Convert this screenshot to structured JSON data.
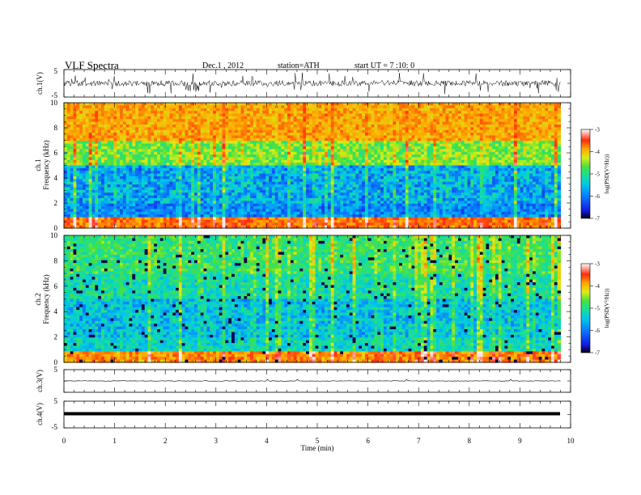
{
  "header": {
    "title": "VLF  Spectra",
    "date": "Dec.1  , 2012",
    "station": "station=ATH",
    "start": "start  UT  =   7  :10: 0"
  },
  "chart_data": [
    {
      "type": "line",
      "panel": "ch1",
      "ylabel": "ch.1(V)",
      "ylim": [
        -5,
        5
      ],
      "yticks": [
        "5",
        "-5"
      ]
    },
    {
      "type": "heatmap",
      "panel": "spec1",
      "ylabel_top": "ch.1",
      "ylabel": "Frequency  (kHz)",
      "ylim": [
        0,
        10
      ],
      "yticks": [
        "0",
        "2",
        "4",
        "6",
        "8",
        "10"
      ],
      "colorbar": {
        "label": "log(PSD(V²/Hz))",
        "range": [
          -7,
          -3
        ],
        "ticks": [
          "-3",
          "-4",
          "-5",
          "-6",
          "-7"
        ]
      }
    },
    {
      "type": "heatmap",
      "panel": "spec2",
      "ylabel_top": "ch.2",
      "ylabel": "Frequency  (kHz)",
      "ylim": [
        0,
        10
      ],
      "yticks": [
        "0",
        "2",
        "4",
        "6",
        "8",
        "10"
      ],
      "colorbar": {
        "label": "log(PSD(V²/Hz))",
        "range": [
          -7,
          -3
        ],
        "ticks": [
          "-3",
          "-4",
          "-5",
          "-6",
          "-7"
        ]
      }
    },
    {
      "type": "line",
      "panel": "ch3",
      "ylabel": "ch.3(V)",
      "ylim": [
        -5,
        5
      ],
      "yticks": [
        "5",
        "-5"
      ]
    },
    {
      "type": "line",
      "panel": "ch4",
      "ylabel": "ch.4(V)",
      "ylim": [
        -5,
        5
      ],
      "yticks": [
        "5",
        "-5"
      ]
    }
  ],
  "xaxis": {
    "label": "Time  (min)",
    "xlim": [
      0,
      10
    ],
    "ticks": [
      "0",
      "1",
      "2",
      "3",
      "4",
      "5",
      "6",
      "7",
      "8",
      "9",
      "10"
    ],
    "data_end": 9.8
  },
  "colors": {
    "axis": "#000000",
    "colormap": [
      "#000000",
      "#1414dc",
      "#0a7cff",
      "#00c8e8",
      "#1ee08c",
      "#48e040",
      "#d8ee18",
      "#ffa800",
      "#ff2a10",
      "#ffffff"
    ]
  }
}
